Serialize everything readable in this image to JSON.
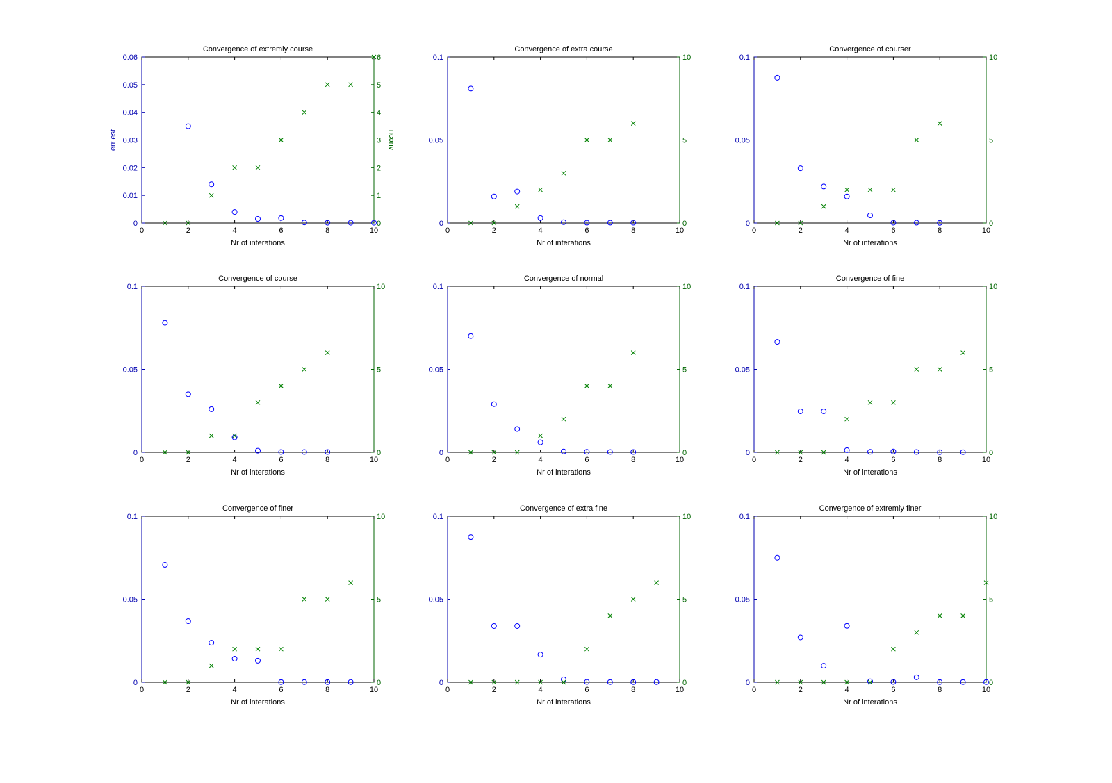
{
  "chart_data": [
    {
      "type": "scatter",
      "title": "Convergence of extremly course",
      "xlabel": "Nr of interations",
      "ylabel": "err est",
      "ylabel_right": "nconv",
      "xlim": [
        0,
        10
      ],
      "xticks": [
        0,
        2,
        4,
        6,
        8,
        10
      ],
      "ylim": [
        0,
        0.06
      ],
      "yticks": [
        0,
        0.01,
        0.02,
        0.03,
        0.04,
        0.05,
        0.06
      ],
      "ylim_right": [
        0,
        6
      ],
      "yticks_right": [
        0,
        1,
        2,
        3,
        4,
        5,
        6
      ],
      "series": [
        {
          "name": "err est",
          "marker": "o",
          "color": "#0000ff",
          "x": [
            2,
            3,
            4,
            5,
            6,
            7,
            8,
            9,
            10
          ],
          "y": [
            0.035,
            0.014,
            0.004,
            0.0015,
            0.0018,
            0.0002,
            0.0001,
            0.0001,
            0.0001
          ]
        },
        {
          "name": "nconv",
          "marker": "x",
          "color": "#008000",
          "axis": "right",
          "x": [
            1,
            2,
            3,
            4,
            5,
            6,
            7,
            8,
            9,
            10
          ],
          "y": [
            0,
            0,
            1,
            2,
            2,
            3,
            4,
            5,
            5,
            6
          ]
        }
      ]
    },
    {
      "type": "scatter",
      "title": "Convergence of extra course",
      "xlabel": "Nr of interations",
      "xlim": [
        0,
        10
      ],
      "xticks": [
        0,
        2,
        4,
        6,
        8,
        10
      ],
      "ylim": [
        0,
        0.1
      ],
      "yticks": [
        0,
        0.05,
        0.1
      ],
      "ylim_right": [
        0,
        10
      ],
      "yticks_right": [
        0,
        5,
        10
      ],
      "series": [
        {
          "name": "err est",
          "marker": "o",
          "color": "#0000ff",
          "x": [
            1,
            2,
            3,
            4,
            5,
            6,
            7,
            8
          ],
          "y": [
            0.081,
            0.016,
            0.019,
            0.003,
            0.0005,
            0.0002,
            0.0002,
            0.0002
          ]
        },
        {
          "name": "nconv",
          "marker": "x",
          "color": "#008000",
          "axis": "right",
          "x": [
            1,
            2,
            3,
            4,
            5,
            6,
            7,
            8
          ],
          "y": [
            0,
            0,
            1,
            2,
            3,
            5,
            5,
            6
          ]
        }
      ]
    },
    {
      "type": "scatter",
      "title": "Convergence of courser",
      "xlabel": "Nr of interations",
      "xlim": [
        0,
        10
      ],
      "xticks": [
        0,
        2,
        4,
        6,
        8,
        10
      ],
      "ylim": [
        0,
        0.1
      ],
      "yticks": [
        0,
        0.05,
        0.1
      ],
      "ylim_right": [
        0,
        10
      ],
      "yticks_right": [
        0,
        5,
        10
      ],
      "series": [
        {
          "name": "err est",
          "marker": "o",
          "color": "#0000ff",
          "x": [
            1,
            2,
            3,
            4,
            5,
            6,
            7,
            8
          ],
          "y": [
            0.0875,
            0.033,
            0.022,
            0.016,
            0.0046,
            0.0002,
            0.0002,
            0.0001
          ]
        },
        {
          "name": "nconv",
          "marker": "x",
          "color": "#008000",
          "axis": "right",
          "x": [
            1,
            2,
            3,
            4,
            5,
            6,
            7,
            8
          ],
          "y": [
            0,
            0,
            1,
            2,
            2,
            2,
            5,
            6
          ]
        }
      ]
    },
    {
      "type": "scatter",
      "title": "Convergence of course",
      "xlabel": "Nr of interations",
      "xlim": [
        0,
        10
      ],
      "xticks": [
        0,
        2,
        4,
        6,
        8,
        10
      ],
      "ylim": [
        0,
        0.1
      ],
      "yticks": [
        0,
        0.05,
        0.1
      ],
      "ylim_right": [
        0,
        10
      ],
      "yticks_right": [
        0,
        5,
        10
      ],
      "series": [
        {
          "name": "err est",
          "marker": "o",
          "color": "#0000ff",
          "x": [
            1,
            2,
            3,
            4,
            5,
            6,
            7,
            8
          ],
          "y": [
            0.078,
            0.035,
            0.026,
            0.009,
            0.001,
            0.0002,
            0.0002,
            0.0002
          ]
        },
        {
          "name": "nconv",
          "marker": "x",
          "color": "#008000",
          "axis": "right",
          "x": [
            1,
            2,
            3,
            4,
            5,
            6,
            7,
            8
          ],
          "y": [
            0,
            0,
            1,
            1,
            3,
            4,
            5,
            6
          ]
        }
      ]
    },
    {
      "type": "scatter",
      "title": "Convergence of normal",
      "xlabel": "Nr of interations",
      "xlim": [
        0,
        10
      ],
      "xticks": [
        0,
        2,
        4,
        6,
        8,
        10
      ],
      "ylim": [
        0,
        0.1
      ],
      "yticks": [
        0,
        0.05,
        0.1
      ],
      "ylim_right": [
        0,
        10
      ],
      "yticks_right": [
        0,
        5,
        10
      ],
      "series": [
        {
          "name": "err est",
          "marker": "o",
          "color": "#0000ff",
          "x": [
            1,
            2,
            3,
            4,
            5,
            6,
            7,
            8
          ],
          "y": [
            0.07,
            0.029,
            0.014,
            0.006,
            0.0005,
            0.0003,
            0.0002,
            0.0002
          ]
        },
        {
          "name": "nconv",
          "marker": "x",
          "color": "#008000",
          "axis": "right",
          "x": [
            1,
            2,
            3,
            4,
            5,
            6,
            7,
            8
          ],
          "y": [
            0,
            0,
            0,
            1,
            2,
            4,
            4,
            6
          ]
        }
      ]
    },
    {
      "type": "scatter",
      "title": "Convergence of fine",
      "xlabel": "Nr of interations",
      "xlim": [
        0,
        10
      ],
      "xticks": [
        0,
        2,
        4,
        6,
        8,
        10
      ],
      "ylim": [
        0,
        0.1
      ],
      "yticks": [
        0,
        0.05,
        0.1
      ],
      "ylim_right": [
        0,
        10
      ],
      "yticks_right": [
        0,
        5,
        10
      ],
      "series": [
        {
          "name": "err est",
          "marker": "o",
          "color": "#0000ff",
          "x": [
            1,
            2,
            3,
            4,
            5,
            6,
            7,
            8,
            9
          ],
          "y": [
            0.0665,
            0.0247,
            0.0247,
            0.0013,
            0.0003,
            0.0005,
            0.0002,
            0.0001,
            0.0001
          ]
        },
        {
          "name": "nconv",
          "marker": "x",
          "color": "#008000",
          "axis": "right",
          "x": [
            1,
            2,
            3,
            4,
            5,
            6,
            7,
            8,
            9
          ],
          "y": [
            0,
            0,
            0,
            2,
            3,
            3,
            5,
            5,
            6
          ]
        }
      ]
    },
    {
      "type": "scatter",
      "title": "Convergence of finer",
      "xlabel": "Nr of interations",
      "xlim": [
        0,
        10
      ],
      "xticks": [
        0,
        2,
        4,
        6,
        8,
        10
      ],
      "ylim": [
        0,
        0.1
      ],
      "yticks": [
        0,
        0.05,
        0.1
      ],
      "ylim_right": [
        0,
        10
      ],
      "yticks_right": [
        0,
        5,
        10
      ],
      "series": [
        {
          "name": "err est",
          "marker": "o",
          "color": "#0000ff",
          "x": [
            1,
            2,
            3,
            4,
            5,
            6,
            7,
            8,
            9
          ],
          "y": [
            0.0707,
            0.0368,
            0.0238,
            0.0142,
            0.013,
            0.0001,
            0.0001,
            0.0001,
            0.0001
          ]
        },
        {
          "name": "nconv",
          "marker": "x",
          "color": "#008000",
          "axis": "right",
          "x": [
            1,
            2,
            3,
            4,
            5,
            6,
            7,
            8,
            9
          ],
          "y": [
            0,
            0,
            1,
            2,
            2,
            2,
            5,
            5,
            6
          ]
        }
      ]
    },
    {
      "type": "scatter",
      "title": "Convergence of extra fine",
      "xlabel": "Nr of interations",
      "xlim": [
        0,
        10
      ],
      "xticks": [
        0,
        2,
        4,
        6,
        8,
        10
      ],
      "ylim": [
        0,
        0.1
      ],
      "yticks": [
        0,
        0.05,
        0.1
      ],
      "ylim_right": [
        0,
        10
      ],
      "yticks_right": [
        0,
        5,
        10
      ],
      "series": [
        {
          "name": "err est",
          "marker": "o",
          "color": "#0000ff",
          "x": [
            1,
            2,
            3,
            4,
            5,
            6,
            7,
            8,
            9
          ],
          "y": [
            0.0874,
            0.0339,
            0.0339,
            0.0167,
            0.0017,
            0.0002,
            0.0001,
            0.0001,
            0.0001
          ]
        },
        {
          "name": "nconv",
          "marker": "x",
          "color": "#008000",
          "axis": "right",
          "x": [
            1,
            2,
            3,
            4,
            5,
            6,
            7,
            8,
            9
          ],
          "y": [
            0,
            0,
            0,
            0,
            0,
            2,
            4,
            5,
            6
          ]
        }
      ]
    },
    {
      "type": "scatter",
      "title": "Convergence of extremly finer",
      "xlabel": "Nr of interations",
      "xlim": [
        0,
        10
      ],
      "xticks": [
        0,
        2,
        4,
        6,
        8,
        10
      ],
      "ylim": [
        0,
        0.1
      ],
      "yticks": [
        0,
        0.05,
        0.1
      ],
      "ylim_right": [
        0,
        10
      ],
      "yticks_right": [
        0,
        5,
        10
      ],
      "series": [
        {
          "name": "err est",
          "marker": "o",
          "color": "#0000ff",
          "x": [
            1,
            2,
            3,
            4,
            5,
            6,
            7,
            8,
            9,
            10
          ],
          "y": [
            0.075,
            0.027,
            0.01,
            0.034,
            0.0005,
            0.0002,
            0.003,
            0.0001,
            0.0001,
            0.0001
          ]
        },
        {
          "name": "nconv",
          "marker": "x",
          "color": "#008000",
          "axis": "right",
          "x": [
            1,
            2,
            3,
            4,
            5,
            6,
            7,
            8,
            9,
            10
          ],
          "y": [
            0,
            0,
            0,
            0,
            0,
            2,
            3,
            4,
            4,
            6
          ]
        }
      ]
    }
  ]
}
